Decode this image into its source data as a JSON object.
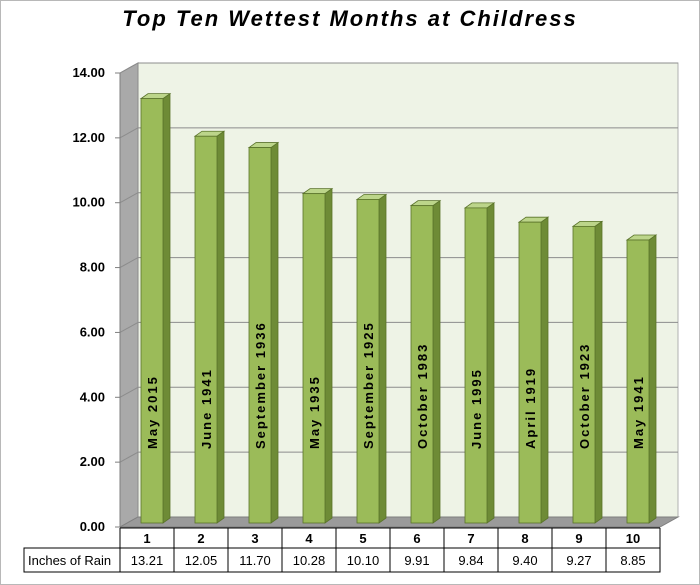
{
  "chart_data": {
    "type": "bar",
    "title": "Top Ten Wettest Months at Childress",
    "categories": [
      "1",
      "2",
      "3",
      "4",
      "5",
      "6",
      "7",
      "8",
      "9",
      "10"
    ],
    "bar_labels": [
      "May 2015",
      "June 1941",
      "September 1936",
      "May 1935",
      "September 1925",
      "October 1983",
      "June 1995",
      "April 1919",
      "October 1923",
      "May 1941"
    ],
    "series": [
      {
        "name": "Inches of Rain",
        "values": [
          13.21,
          12.05,
          11.7,
          10.28,
          10.1,
          9.91,
          9.84,
          9.4,
          9.27,
          8.85
        ],
        "value_labels": [
          "13.21",
          "12.05",
          "11.70",
          "10.28",
          "10.10",
          "9.91",
          "9.84",
          "9.40",
          "9.27",
          "8.85"
        ]
      }
    ],
    "y_ticks": [
      "0.00",
      "2.00",
      "4.00",
      "6.00",
      "8.00",
      "10.00",
      "12.00",
      "14.00"
    ],
    "ylim": [
      0,
      14
    ],
    "xlabel": "",
    "ylabel": "",
    "grid": true,
    "data_table": true,
    "colors": {
      "bar_front": "#9bbb59",
      "bar_side": "#6e8b36",
      "bar_top": "#bcd58a",
      "wall": "#eef3e6",
      "floor": "#9a9a9a",
      "grid": "#8c8c8c"
    }
  }
}
